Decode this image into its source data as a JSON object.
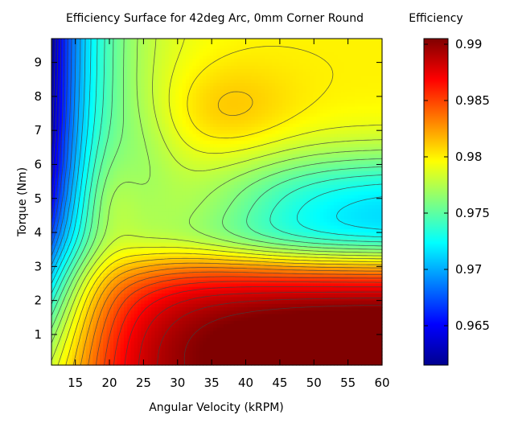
{
  "chart_data": {
    "type": "heatmap",
    "title": "Efficiency Surface for 42deg Arc, 0mm Corner Round",
    "xlabel": "Angular Velocity (kRPM)",
    "ylabel": "Torque (Nm)",
    "xlim": [
      11.5,
      60
    ],
    "ylim": [
      0.1,
      9.7
    ],
    "xticks": [
      15,
      20,
      25,
      30,
      35,
      40,
      45,
      50,
      55,
      60
    ],
    "yticks": [
      1,
      2,
      3,
      4,
      5,
      6,
      7,
      8,
      9
    ],
    "colorbar": {
      "label": "Efficiency",
      "range": [
        0.9615,
        0.9905
      ],
      "ticks": [
        0.965,
        0.97,
        0.975,
        0.98,
        0.985,
        0.99
      ],
      "tick_labels": [
        "0.965",
        "0.97",
        "0.975",
        "0.98",
        "0.985",
        "0.99"
      ]
    },
    "contour_interval": 0.001,
    "features": [
      {
        "description": "maximum",
        "x": 57,
        "y": 0.6,
        "value": 0.9895
      },
      {
        "description": "local high plateau",
        "x": 37,
        "y": 7.6,
        "value": 0.9802
      },
      {
        "description": "valley minimum",
        "x": 59,
        "y": 4.8,
        "value": 0.9712
      },
      {
        "description": "minimum",
        "x": 11.5,
        "y": 9.7,
        "value": 0.9615
      }
    ]
  }
}
